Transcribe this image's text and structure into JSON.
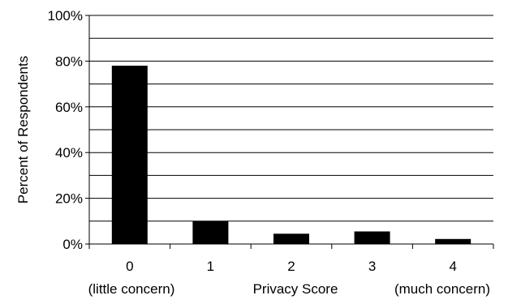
{
  "chart_data": {
    "type": "bar",
    "title": "",
    "xlabel": "Privacy Score",
    "ylabel": "Percent of Respondents",
    "categories": [
      "0",
      "1",
      "2",
      "3",
      "4"
    ],
    "category_notes": {
      "first": "(little concern)",
      "last": "(much concern)"
    },
    "values": [
      78,
      10,
      4.5,
      5.5,
      2.2
    ],
    "value_unit": "%",
    "ylim": [
      0,
      100
    ],
    "yticks": [
      "0%",
      "20%",
      "40%",
      "60%",
      "80%",
      "100%"
    ],
    "grid": true,
    "legend": "none",
    "bar_color": "#000000",
    "grid_color": "#000000"
  }
}
